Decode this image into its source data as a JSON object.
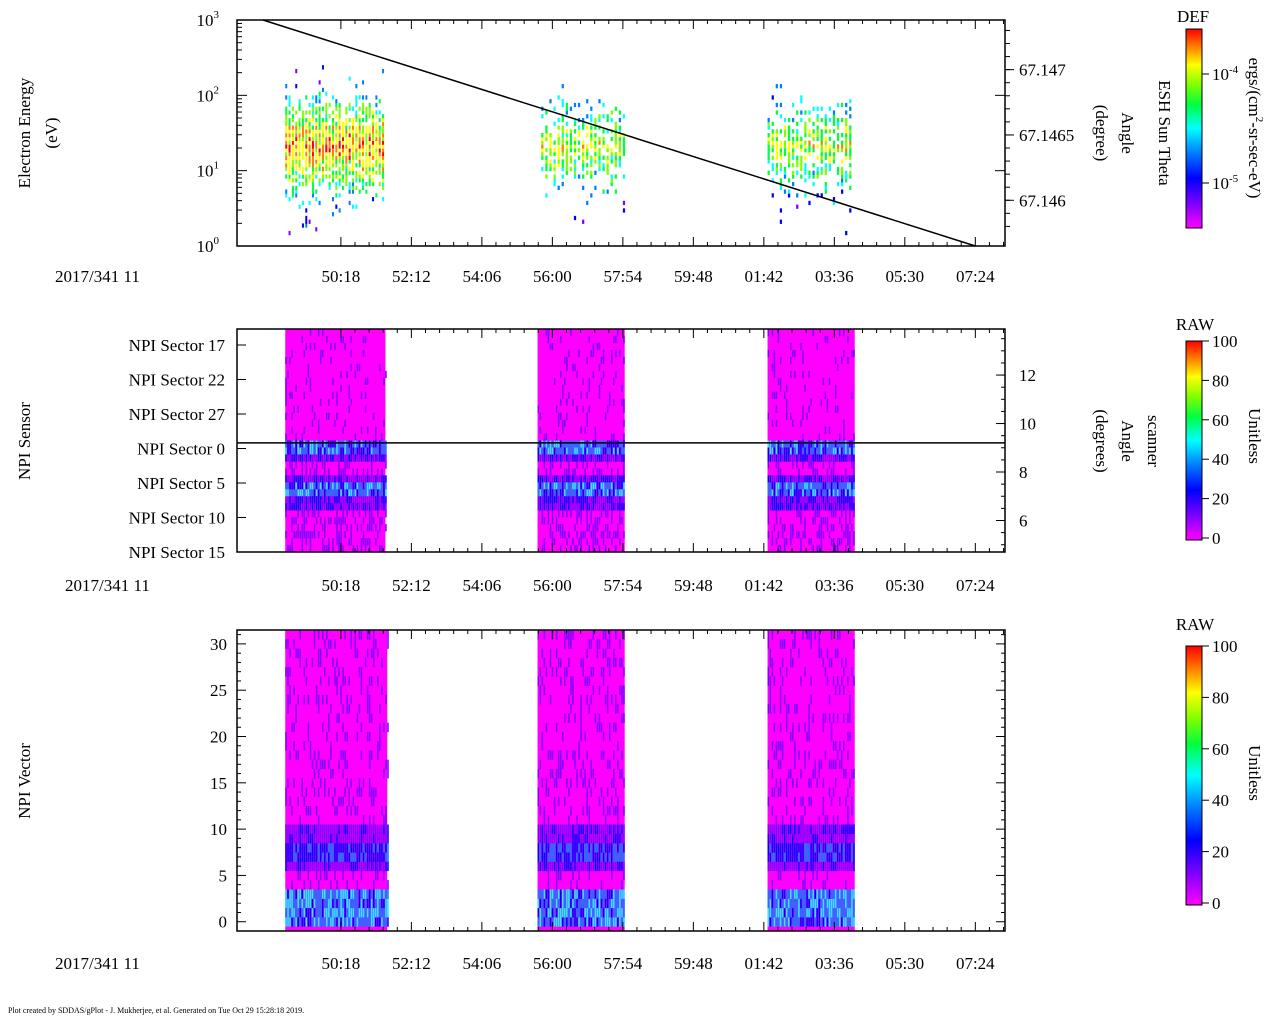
{
  "footer": "Plot created by SDDAS/gPlot - J. Mukherjee, et al.  Generated on Tue Oct 29 15:28:18 2019.",
  "time_axis": {
    "date_label": "2017/341 11",
    "ticks": [
      "50:18",
      "52:12",
      "54:06",
      "56:00",
      "57:54",
      "59:48",
      "01:42",
      "03:36",
      "05:30",
      "07:24"
    ]
  },
  "chart_data": [
    {
      "type": "heatmap",
      "id": "electron-energy",
      "ylabel": [
        "Electron Energy",
        "(eV)"
      ],
      "yscale": "log",
      "ylim": [
        1,
        1000
      ],
      "yticks": [
        "10^0",
        "10^1",
        "10^2",
        "10^3"
      ],
      "data_blocks_minutes": [
        [
          48.8,
          51.5
        ],
        [
          55.7,
          57.9
        ],
        [
          61.8,
          64.0
        ]
      ],
      "peak_energy_ev": 20,
      "overlay": {
        "name": "ESH Sun Theta Angle",
        "ylabel": [
          "ESH Sun Theta",
          "Angle",
          "(degree)"
        ],
        "right_ticks": [
          "67.147",
          "67.1465",
          "67.146"
        ],
        "right_tick_values": [
          67.147,
          67.1465,
          67.146
        ],
        "ylim": [
          67.14565,
          67.14738
        ],
        "start_value": 67.14738,
        "end_value": 67.14565
      },
      "colorbar": {
        "title": "DEF",
        "units": "ergs/(cm^2-sr-sec-eV)",
        "tick_labels": [
          "10^-4",
          "10^-5"
        ],
        "scale": "log"
      }
    },
    {
      "type": "heatmap",
      "id": "npi-sensor",
      "ylabel": "NPI Sensor",
      "yticks": [
        "NPI Sector 17",
        "NPI Sector 22",
        "NPI Sector 27",
        "NPI Sector 0",
        "NPI Sector 5",
        "NPI Sector 10",
        "NPI Sector 15"
      ],
      "data_blocks_minutes": [
        [
          48.8,
          51.5
        ],
        [
          55.6,
          57.95
        ],
        [
          61.8,
          64.15
        ]
      ],
      "overlay": {
        "name": "scanner Angle",
        "ylabel": [
          "scanner",
          "Angle",
          "(degrees)"
        ],
        "right_ticks": [
          "12",
          "10",
          "8",
          "6"
        ],
        "right_tick_values": [
          12,
          10,
          8,
          6
        ],
        "ylim": [
          4.7,
          13.9
        ],
        "constant_value": 9.2
      },
      "colorbar": {
        "title": "RAW",
        "units": "Unitless",
        "range": [
          0,
          100
        ],
        "tick_labels": [
          "100",
          "80",
          "60",
          "40",
          "20",
          "0"
        ]
      }
    },
    {
      "type": "heatmap",
      "id": "npi-vector",
      "ylabel": "NPI Vector",
      "ylim": [
        -1,
        31.5
      ],
      "yticks": [
        "30",
        "25",
        "20",
        "15",
        "10",
        "5",
        "0"
      ],
      "ytick_values": [
        30,
        25,
        20,
        15,
        10,
        5,
        0
      ],
      "data_blocks_minutes": [
        [
          48.8,
          51.55
        ],
        [
          55.6,
          57.95
        ],
        [
          61.8,
          64.15
        ]
      ],
      "colorbar": {
        "title": "RAW",
        "units": "Unitless",
        "range": [
          0,
          100
        ],
        "tick_labels": [
          "100",
          "80",
          "60",
          "40",
          "20",
          "0"
        ]
      }
    }
  ],
  "colors": {
    "rainbow": [
      "#ff00ff",
      "#8000ff",
      "#0000ff",
      "#0080ff",
      "#00ffff",
      "#00ff40",
      "#80ff00",
      "#ffff00",
      "#ff8000",
      "#ff0000"
    ],
    "magenta_fill": "#ff00ff",
    "frame": "#000000"
  }
}
